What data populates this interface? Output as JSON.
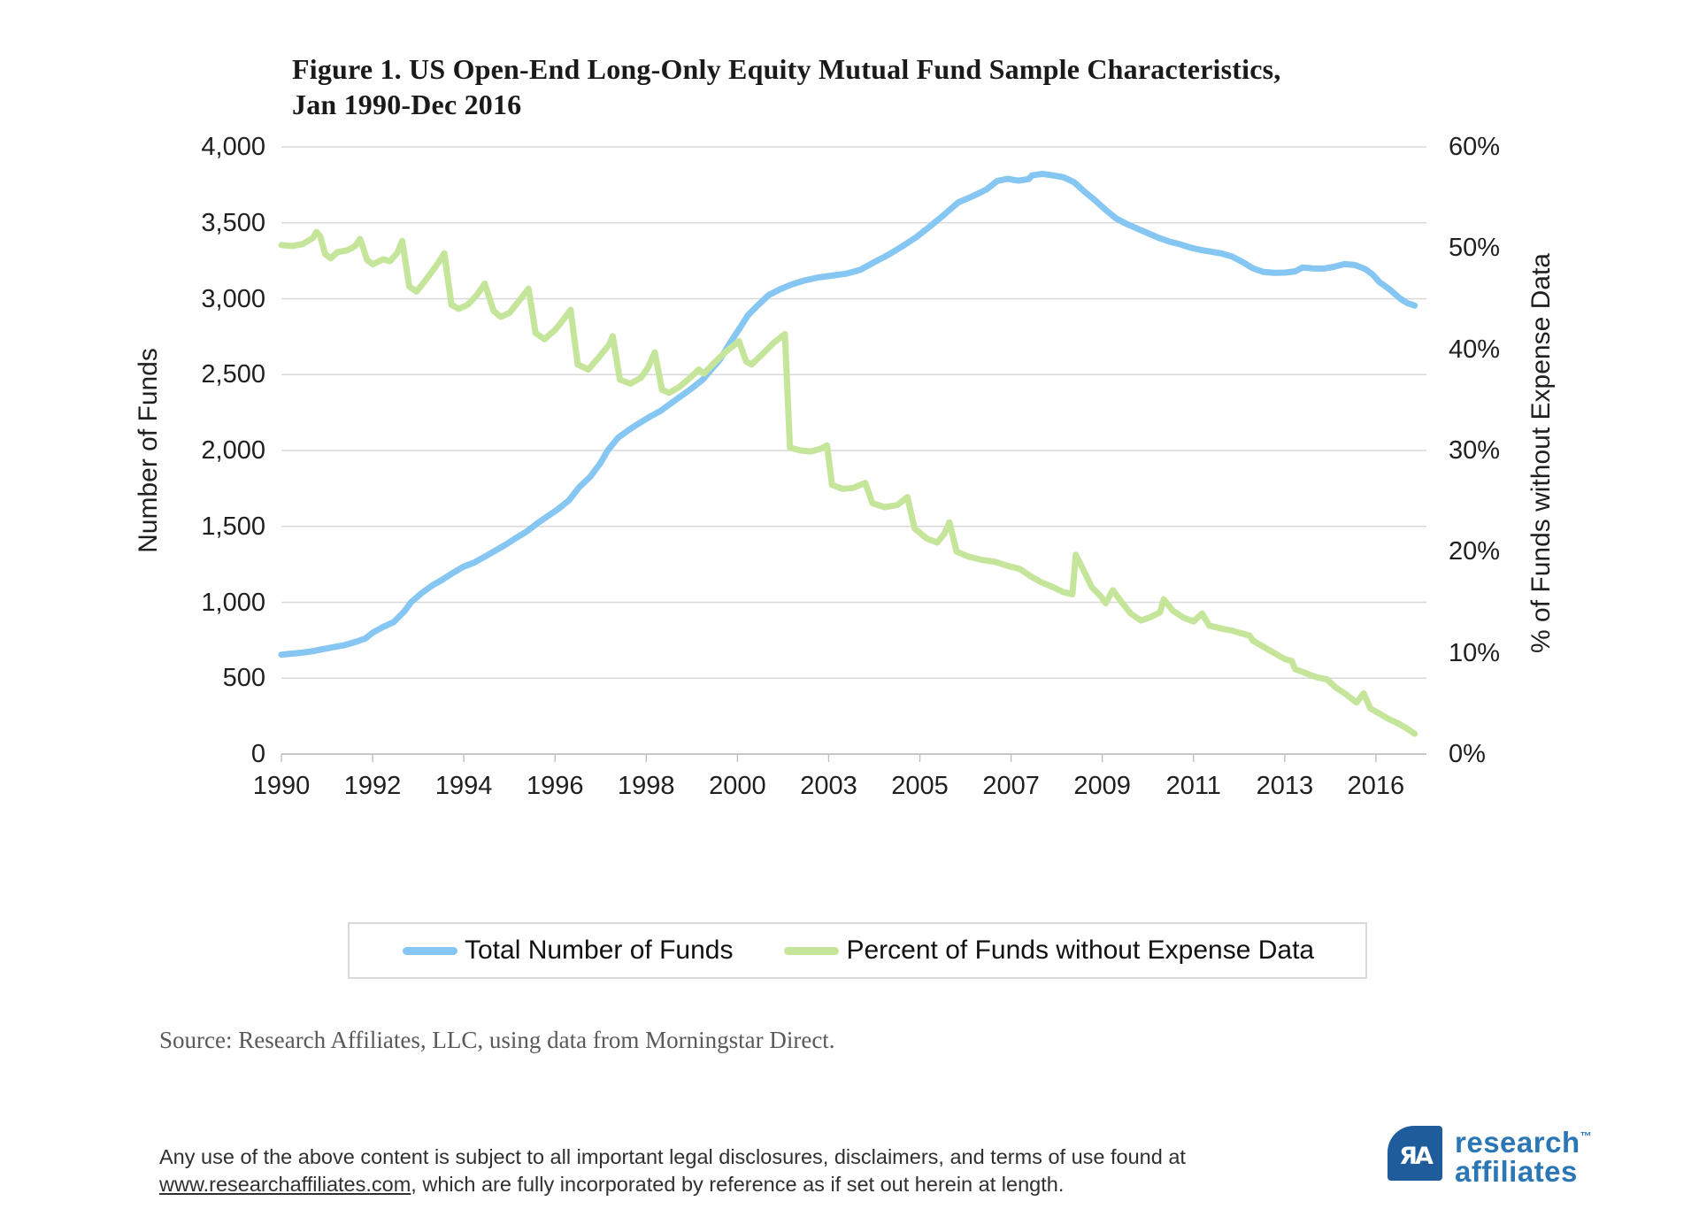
{
  "figure": {
    "title_line1": "Figure 1. US Open-End Long-Only Equity Mutual Fund Sample Characteristics,",
    "title_line2": "Jan 1990-Dec 2016"
  },
  "chart_data": {
    "type": "line",
    "title": "Figure 1. US Open-End Long-Only Equity Mutual Fund Sample Characteristics, Jan 1990-Dec 2016",
    "grid": true,
    "legend_position": "bottom",
    "x_axis": {
      "range": [
        1990,
        2017.2
      ],
      "tick_years": [
        1990,
        1992.1667,
        1994.3333,
        1996.5,
        1998.6667,
        2000.8333,
        2003,
        2005.1667,
        2007.3333,
        2009.5,
        2011.6667,
        2013.8333,
        2016
      ],
      "tick_labels": [
        "1990",
        "1992",
        "1994",
        "1996",
        "1998",
        "2000",
        "2003",
        "2005",
        "2007",
        "2009",
        "2011",
        "2013",
        "2016"
      ]
    },
    "y_left": {
      "label": "Number of Funds",
      "range": [
        0,
        4000
      ],
      "tick_step": 500,
      "tick_labels": [
        "0",
        "500",
        "1,000",
        "1,500",
        "2,000",
        "2,500",
        "3,000",
        "3,500",
        "4,000"
      ]
    },
    "y_right": {
      "label": "% of Funds without Expense Data",
      "range": [
        0,
        60
      ],
      "tick_step": 10,
      "tick_labels": [
        "0%",
        "10%",
        "20%",
        "30%",
        "40%",
        "50%",
        "60%"
      ]
    },
    "series": [
      {
        "name": "Total Number of Funds",
        "axis": "left",
        "color": "#85C6F2",
        "points": [
          [
            1990.0,
            655
          ],
          [
            1990.25,
            662
          ],
          [
            1990.5,
            668
          ],
          [
            1990.75,
            678
          ],
          [
            1991.0,
            692
          ],
          [
            1991.25,
            705
          ],
          [
            1991.5,
            718
          ],
          [
            1991.75,
            738
          ],
          [
            1992.0,
            762
          ],
          [
            1992.17,
            800
          ],
          [
            1992.42,
            838
          ],
          [
            1992.67,
            870
          ],
          [
            1992.92,
            940
          ],
          [
            1993.08,
            1000
          ],
          [
            1993.33,
            1060
          ],
          [
            1993.58,
            1110
          ],
          [
            1993.83,
            1150
          ],
          [
            1994.08,
            1195
          ],
          [
            1994.33,
            1235
          ],
          [
            1994.58,
            1262
          ],
          [
            1994.83,
            1300
          ],
          [
            1995.08,
            1340
          ],
          [
            1995.33,
            1380
          ],
          [
            1995.58,
            1425
          ],
          [
            1995.83,
            1467
          ],
          [
            1996.08,
            1520
          ],
          [
            1996.33,
            1568
          ],
          [
            1996.58,
            1615
          ],
          [
            1996.83,
            1672
          ],
          [
            1997.08,
            1760
          ],
          [
            1997.33,
            1825
          ],
          [
            1997.58,
            1917
          ],
          [
            1997.75,
            2000
          ],
          [
            1998.0,
            2085
          ],
          [
            1998.25,
            2135
          ],
          [
            1998.5,
            2180
          ],
          [
            1998.75,
            2222
          ],
          [
            1999.0,
            2260
          ],
          [
            1999.25,
            2310
          ],
          [
            1999.5,
            2360
          ],
          [
            1999.75,
            2410
          ],
          [
            2000.0,
            2465
          ],
          [
            2000.17,
            2520
          ],
          [
            2000.42,
            2600
          ],
          [
            2000.67,
            2715
          ],
          [
            2000.92,
            2820
          ],
          [
            2001.08,
            2890
          ],
          [
            2001.33,
            2960
          ],
          [
            2001.58,
            3025
          ],
          [
            2001.83,
            3060
          ],
          [
            2002.08,
            3090
          ],
          [
            2002.42,
            3120
          ],
          [
            2002.75,
            3140
          ],
          [
            2003.08,
            3152
          ],
          [
            2003.42,
            3165
          ],
          [
            2003.75,
            3190
          ],
          [
            2004.08,
            3240
          ],
          [
            2004.42,
            3290
          ],
          [
            2004.75,
            3345
          ],
          [
            2005.08,
            3405
          ],
          [
            2005.42,
            3480
          ],
          [
            2005.75,
            3555
          ],
          [
            2006.08,
            3635
          ],
          [
            2006.42,
            3675
          ],
          [
            2006.75,
            3720
          ],
          [
            2007.0,
            3775
          ],
          [
            2007.25,
            3790
          ],
          [
            2007.5,
            3778
          ],
          [
            2007.75,
            3788
          ],
          [
            2007.83,
            3812
          ],
          [
            2008.08,
            3822
          ],
          [
            2008.33,
            3812
          ],
          [
            2008.58,
            3800
          ],
          [
            2008.83,
            3768
          ],
          [
            2009.08,
            3705
          ],
          [
            2009.33,
            3648
          ],
          [
            2009.58,
            3585
          ],
          [
            2009.83,
            3528
          ],
          [
            2010.08,
            3492
          ],
          [
            2010.33,
            3462
          ],
          [
            2010.58,
            3432
          ],
          [
            2010.83,
            3402
          ],
          [
            2011.08,
            3378
          ],
          [
            2011.33,
            3360
          ],
          [
            2011.58,
            3338
          ],
          [
            2011.83,
            3322
          ],
          [
            2012.08,
            3310
          ],
          [
            2012.33,
            3298
          ],
          [
            2012.58,
            3278
          ],
          [
            2012.83,
            3242
          ],
          [
            2013.08,
            3200
          ],
          [
            2013.33,
            3176
          ],
          [
            2013.58,
            3170
          ],
          [
            2013.83,
            3172
          ],
          [
            2014.08,
            3180
          ],
          [
            2014.25,
            3205
          ],
          [
            2014.5,
            3200
          ],
          [
            2014.75,
            3198
          ],
          [
            2015.0,
            3210
          ],
          [
            2015.25,
            3228
          ],
          [
            2015.5,
            3222
          ],
          [
            2015.75,
            3195
          ],
          [
            2015.92,
            3160
          ],
          [
            2016.08,
            3110
          ],
          [
            2016.33,
            3060
          ],
          [
            2016.58,
            3000
          ],
          [
            2016.75,
            2970
          ],
          [
            2016.92,
            2955
          ]
        ]
      },
      {
        "name": "Percent of Funds without Expense Data",
        "axis": "right",
        "color": "#C5E59B",
        "points": [
          [
            1990.0,
            50.3
          ],
          [
            1990.25,
            50.2
          ],
          [
            1990.5,
            50.4
          ],
          [
            1990.75,
            51.0
          ],
          [
            1990.83,
            51.6
          ],
          [
            1990.92,
            51.2
          ],
          [
            1991.04,
            49.4
          ],
          [
            1991.17,
            49.0
          ],
          [
            1991.33,
            49.6
          ],
          [
            1991.58,
            49.8
          ],
          [
            1991.75,
            50.2
          ],
          [
            1991.87,
            50.9
          ],
          [
            1992.04,
            48.8
          ],
          [
            1992.17,
            48.4
          ],
          [
            1992.42,
            48.9
          ],
          [
            1992.58,
            48.7
          ],
          [
            1992.75,
            49.5
          ],
          [
            1992.87,
            50.7
          ],
          [
            1993.04,
            46.2
          ],
          [
            1993.21,
            45.7
          ],
          [
            1993.42,
            46.8
          ],
          [
            1993.67,
            48.2
          ],
          [
            1993.87,
            49.5
          ],
          [
            1994.04,
            44.4
          ],
          [
            1994.21,
            44.0
          ],
          [
            1994.42,
            44.4
          ],
          [
            1994.63,
            45.3
          ],
          [
            1994.83,
            46.5
          ],
          [
            1995.04,
            43.8
          ],
          [
            1995.21,
            43.2
          ],
          [
            1995.42,
            43.6
          ],
          [
            1995.63,
            44.7
          ],
          [
            1995.87,
            46.0
          ],
          [
            1996.04,
            41.6
          ],
          [
            1996.25,
            41.0
          ],
          [
            1996.5,
            41.9
          ],
          [
            1996.71,
            43.0
          ],
          [
            1996.87,
            43.9
          ],
          [
            1997.04,
            38.5
          ],
          [
            1997.29,
            38.0
          ],
          [
            1997.54,
            39.2
          ],
          [
            1997.79,
            40.5
          ],
          [
            1997.87,
            41.3
          ],
          [
            1998.04,
            37.0
          ],
          [
            1998.29,
            36.6
          ],
          [
            1998.54,
            37.2
          ],
          [
            1998.71,
            38.2
          ],
          [
            1998.87,
            39.7
          ],
          [
            1999.04,
            36.0
          ],
          [
            1999.21,
            35.7
          ],
          [
            1999.46,
            36.3
          ],
          [
            1999.71,
            37.2
          ],
          [
            1999.92,
            38.0
          ],
          [
            2000.04,
            37.6
          ],
          [
            2000.29,
            38.7
          ],
          [
            2000.54,
            39.7
          ],
          [
            2000.87,
            40.8
          ],
          [
            2001.04,
            38.8
          ],
          [
            2001.17,
            38.5
          ],
          [
            2001.42,
            39.5
          ],
          [
            2001.71,
            40.7
          ],
          [
            2001.96,
            41.5
          ],
          [
            2002.08,
            30.3
          ],
          [
            2002.33,
            30.0
          ],
          [
            2002.58,
            29.9
          ],
          [
            2002.83,
            30.2
          ],
          [
            2002.96,
            30.5
          ],
          [
            2003.08,
            26.6
          ],
          [
            2003.33,
            26.2
          ],
          [
            2003.58,
            26.3
          ],
          [
            2003.87,
            26.8
          ],
          [
            2004.04,
            24.8
          ],
          [
            2004.33,
            24.4
          ],
          [
            2004.63,
            24.6
          ],
          [
            2004.87,
            25.4
          ],
          [
            2005.04,
            22.3
          ],
          [
            2005.33,
            21.3
          ],
          [
            2005.58,
            20.9
          ],
          [
            2005.75,
            21.8
          ],
          [
            2005.87,
            22.9
          ],
          [
            2006.04,
            20.0
          ],
          [
            2006.33,
            19.5
          ],
          [
            2006.63,
            19.2
          ],
          [
            2006.96,
            19.0
          ],
          [
            2007.25,
            18.6
          ],
          [
            2007.54,
            18.3
          ],
          [
            2007.79,
            17.6
          ],
          [
            2008.04,
            17.0
          ],
          [
            2008.33,
            16.5
          ],
          [
            2008.58,
            16.0
          ],
          [
            2008.79,
            15.8
          ],
          [
            2008.87,
            19.7
          ],
          [
            2009.04,
            18.3
          ],
          [
            2009.25,
            16.5
          ],
          [
            2009.46,
            15.6
          ],
          [
            2009.58,
            14.9
          ],
          [
            2009.75,
            16.2
          ],
          [
            2009.96,
            15.0
          ],
          [
            2010.17,
            13.9
          ],
          [
            2010.42,
            13.2
          ],
          [
            2010.63,
            13.5
          ],
          [
            2010.87,
            14.0
          ],
          [
            2010.96,
            15.3
          ],
          [
            2011.17,
            14.2
          ],
          [
            2011.42,
            13.5
          ],
          [
            2011.67,
            13.1
          ],
          [
            2011.87,
            13.9
          ],
          [
            2012.04,
            12.7
          ],
          [
            2012.33,
            12.4
          ],
          [
            2012.58,
            12.2
          ],
          [
            2012.83,
            11.9
          ],
          [
            2013.0,
            11.7
          ],
          [
            2013.08,
            11.2
          ],
          [
            2013.33,
            10.6
          ],
          [
            2013.58,
            10.0
          ],
          [
            2013.83,
            9.4
          ],
          [
            2014.0,
            9.2
          ],
          [
            2014.08,
            8.4
          ],
          [
            2014.33,
            8.0
          ],
          [
            2014.58,
            7.6
          ],
          [
            2014.83,
            7.4
          ],
          [
            2015.04,
            6.6
          ],
          [
            2015.29,
            5.9
          ],
          [
            2015.54,
            5.1
          ],
          [
            2015.71,
            6.0
          ],
          [
            2015.87,
            4.5
          ],
          [
            2016.04,
            4.1
          ],
          [
            2016.29,
            3.5
          ],
          [
            2016.54,
            3.0
          ],
          [
            2016.75,
            2.5
          ],
          [
            2016.92,
            2.0
          ]
        ]
      }
    ],
    "colors": {
      "gridline": "#D9D9D9",
      "axis_line": "#BFBFBF"
    }
  },
  "notes": {
    "source": "Source: Research Affiliates, LLC, using data from Morningstar Direct."
  },
  "footer": {
    "line1": "Any use of the above content is subject to all important legal disclosures, disclaimers, and terms of use found at",
    "link": "www.researchaffiliates.com",
    "line2_rest": ", which are fully incorporated by reference as if set out herein at length."
  },
  "logo": {
    "monogram": "ЯA",
    "word1": "research",
    "tm": "™",
    "word2": "affiliates",
    "square_color": "#1E5C9B",
    "text_color": "#2B77B5"
  }
}
